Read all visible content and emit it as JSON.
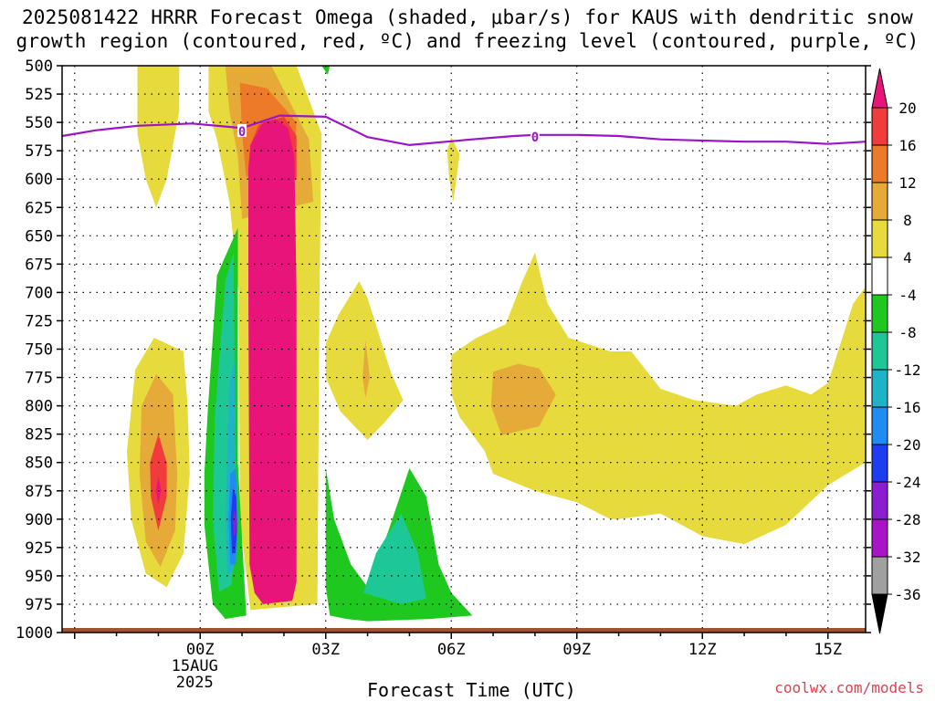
{
  "chart_data": {
    "type": "heatmap",
    "title_line1": "2025081422 HRRR Forecast Omega (shaded, μbar/s) for KAUS with dendritic snow",
    "title_line2": "growth region (contoured, red, ºC) and freezing level (contoured, purple, ºC)",
    "xlabel": "Forecast Time (UTC)",
    "ylabel": "",
    "y_axis": {
      "unit": "hPa",
      "inverted": true,
      "ylim": [
        1000,
        500
      ],
      "ticks": [
        500,
        525,
        550,
        575,
        600,
        625,
        650,
        675,
        700,
        725,
        750,
        775,
        800,
        825,
        850,
        875,
        900,
        925,
        950,
        975,
        1000
      ]
    },
    "x_axis": {
      "xlim_hours": [
        -3.3,
        15.9
      ],
      "ticks": [
        {
          "hour": 0,
          "label": "00Z",
          "sublabels": [
            "15AUG",
            "2025"
          ]
        },
        {
          "hour": 3,
          "label": "03Z"
        },
        {
          "hour": 6,
          "label": "06Z"
        },
        {
          "hour": 9,
          "label": "09Z"
        },
        {
          "hour": 12,
          "label": "12Z"
        },
        {
          "hour": 15,
          "label": "15Z"
        }
      ]
    },
    "grid": true,
    "colorbar": {
      "labels": [
        "20",
        "16",
        "12",
        "8",
        "4",
        "-4",
        "-8",
        "-12",
        "-16",
        "-20",
        "-24",
        "-28",
        "-32",
        "-36"
      ],
      "bins": [
        {
          "from": 20,
          "to": 99,
          "color": "#e8147a",
          "arrow": true
        },
        {
          "from": 16,
          "to": 20,
          "color": "#f03c3c"
        },
        {
          "from": 12,
          "to": 16,
          "color": "#ec7a28"
        },
        {
          "from": 8,
          "to": 12,
          "color": "#e5aa38"
        },
        {
          "from": 4,
          "to": 8,
          "color": "#e6da3c"
        },
        {
          "from": -4,
          "to": 4,
          "color": "#ffffff"
        },
        {
          "from": -8,
          "to": -4,
          "color": "#1ec81e"
        },
        {
          "from": -12,
          "to": -8,
          "color": "#1ec896"
        },
        {
          "from": -16,
          "to": -12,
          "color": "#1eb4c8"
        },
        {
          "from": -20,
          "to": -16,
          "color": "#1e8cf0"
        },
        {
          "from": -24,
          "to": -20,
          "color": "#1e3cf0"
        },
        {
          "from": -28,
          "to": -24,
          "color": "#8c1ed2"
        },
        {
          "from": -32,
          "to": -28,
          "color": "#aa14c8"
        },
        {
          "from": -36,
          "to": -32,
          "color": "#a0a0a0"
        },
        {
          "from": -99,
          "to": -36,
          "color": "#000000",
          "arrow": true
        }
      ]
    },
    "freezing_level": {
      "label": "0",
      "color": "#9b14c8",
      "points": [
        [
          -3.3,
          562
        ],
        [
          -2.5,
          557
        ],
        [
          -1.5,
          553
        ],
        [
          -0.2,
          551
        ],
        [
          1.0,
          555
        ],
        [
          1.9,
          544
        ],
        [
          3.0,
          545
        ],
        [
          4.0,
          563
        ],
        [
          5.0,
          570
        ],
        [
          6.5,
          565
        ],
        [
          7.5,
          562
        ],
        [
          8.0,
          561
        ],
        [
          9.0,
          561
        ],
        [
          10.0,
          562
        ],
        [
          11.0,
          565
        ],
        [
          12.0,
          566
        ],
        [
          13.0,
          567
        ],
        [
          14.0,
          567
        ],
        [
          15.0,
          569
        ],
        [
          15.9,
          567
        ]
      ],
      "label_points": [
        [
          1.0,
          558
        ],
        [
          8.0,
          563
        ]
      ]
    },
    "ground": {
      "color": "#a0522d",
      "pressure": 996
    },
    "regions": [
      {
        "color": "#e6da3c",
        "points": [
          [
            -1.5,
            500
          ],
          [
            -0.5,
            500
          ],
          [
            -0.5,
            540
          ],
          [
            -0.8,
            600
          ],
          [
            -1.05,
            625
          ],
          [
            -1.3,
            600
          ],
          [
            -1.5,
            560
          ]
        ]
      },
      {
        "color": "#e6da3c",
        "points": [
          [
            -1.1,
            740
          ],
          [
            -0.4,
            752
          ],
          [
            -0.3,
            800
          ],
          [
            -0.25,
            860
          ],
          [
            -0.4,
            930
          ],
          [
            -0.8,
            960
          ],
          [
            -1.3,
            948
          ],
          [
            -1.65,
            900
          ],
          [
            -1.75,
            840
          ],
          [
            -1.55,
            768
          ]
        ]
      },
      {
        "color": "#e5aa38",
        "points": [
          [
            -1.05,
            772
          ],
          [
            -0.65,
            790
          ],
          [
            -0.55,
            860
          ],
          [
            -0.6,
            910
          ],
          [
            -0.95,
            942
          ],
          [
            -1.3,
            920
          ],
          [
            -1.45,
            860
          ],
          [
            -1.4,
            800
          ]
        ]
      },
      {
        "color": "#f03c3c",
        "points": [
          [
            -1.0,
            825
          ],
          [
            -0.8,
            850
          ],
          [
            -0.8,
            880
          ],
          [
            -1.0,
            910
          ],
          [
            -1.18,
            880
          ],
          [
            -1.2,
            850
          ]
        ]
      },
      {
        "color": "#e8147a",
        "points": [
          [
            -1.0,
            862
          ],
          [
            -0.93,
            875
          ],
          [
            -1.0,
            886
          ],
          [
            -1.06,
            875
          ]
        ]
      },
      {
        "color": "#e6da3c",
        "points": [
          [
            0.2,
            500
          ],
          [
            2.3,
            500
          ],
          [
            2.9,
            560
          ],
          [
            2.85,
            700
          ],
          [
            2.8,
            975
          ],
          [
            1.2,
            980
          ],
          [
            0.95,
            900
          ],
          [
            0.92,
            700
          ],
          [
            0.7,
            620
          ],
          [
            0.4,
            565
          ],
          [
            0.2,
            540
          ]
        ]
      },
      {
        "color": "#e5aa38",
        "points": [
          [
            0.6,
            500
          ],
          [
            1.7,
            500
          ],
          [
            2.6,
            565
          ],
          [
            2.7,
            620
          ],
          [
            1.0,
            635
          ],
          [
            0.9,
            580
          ],
          [
            0.7,
            540
          ]
        ]
      },
      {
        "color": "#ec7a28",
        "points": [
          [
            0.95,
            515
          ],
          [
            1.6,
            520
          ],
          [
            2.3,
            550
          ],
          [
            2.25,
            590
          ],
          [
            1.1,
            598
          ],
          [
            1.0,
            560
          ]
        ]
      },
      {
        "color": "#f03c3c",
        "points": [
          [
            1.4,
            552
          ],
          [
            2.0,
            545
          ],
          [
            2.3,
            562
          ],
          [
            2.3,
            600
          ],
          [
            1.2,
            600
          ],
          [
            1.2,
            570
          ]
        ]
      },
      {
        "color": "#e8147a",
        "points": [
          [
            1.2,
            570
          ],
          [
            1.5,
            550
          ],
          [
            1.8,
            547
          ],
          [
            2.1,
            555
          ],
          [
            2.25,
            580
          ],
          [
            2.3,
            700
          ],
          [
            2.3,
            955
          ],
          [
            2.2,
            972
          ],
          [
            1.5,
            975
          ],
          [
            1.3,
            965
          ],
          [
            1.18,
            940
          ],
          [
            1.15,
            700
          ],
          [
            1.15,
            590
          ]
        ]
      },
      {
        "color": "#1ec81e",
        "points": [
          [
            0.3,
            975
          ],
          [
            0.1,
            905
          ],
          [
            0.1,
            860
          ],
          [
            0.18,
            805
          ],
          [
            0.4,
            685
          ],
          [
            0.9,
            643
          ],
          [
            0.9,
            850
          ],
          [
            1.1,
            985
          ],
          [
            0.6,
            988
          ]
        ]
      },
      {
        "color": "#1ec896",
        "points": [
          [
            0.45,
            964
          ],
          [
            0.3,
            900
          ],
          [
            0.35,
            810
          ],
          [
            0.6,
            690
          ],
          [
            0.8,
            665
          ],
          [
            0.85,
            900
          ],
          [
            0.75,
            958
          ]
        ]
      },
      {
        "color": "#1eb4c8",
        "points": [
          [
            0.65,
            950
          ],
          [
            0.6,
            900
          ],
          [
            0.7,
            780
          ],
          [
            0.82,
            760
          ],
          [
            0.85,
            900
          ],
          [
            0.8,
            945
          ]
        ]
      },
      {
        "color": "#1e8cf0",
        "points": [
          [
            0.72,
            940
          ],
          [
            0.68,
            900
          ],
          [
            0.72,
            860
          ],
          [
            0.85,
            855
          ],
          [
            0.9,
            900
          ],
          [
            0.85,
            940
          ]
        ]
      },
      {
        "color": "#1e3cf0",
        "points": [
          [
            0.76,
            930
          ],
          [
            0.73,
            900
          ],
          [
            0.78,
            873
          ],
          [
            0.86,
            880
          ],
          [
            0.88,
            910
          ],
          [
            0.84,
            930
          ]
        ]
      },
      {
        "color": "#8c1ed2",
        "points": [
          [
            0.8,
            915
          ],
          [
            0.78,
            900
          ],
          [
            0.82,
            892
          ],
          [
            0.86,
            900
          ],
          [
            0.85,
            913
          ]
        ]
      },
      {
        "color": "#1ec81e",
        "points": [
          [
            3.0,
            855
          ],
          [
            3.2,
            900
          ],
          [
            3.6,
            940
          ],
          [
            4.0,
            960
          ],
          [
            4.5,
            910
          ],
          [
            5.0,
            855
          ],
          [
            5.4,
            880
          ],
          [
            5.7,
            940
          ],
          [
            6.0,
            965
          ],
          [
            6.5,
            985
          ],
          [
            5.5,
            988
          ],
          [
            4.0,
            990
          ],
          [
            3.5,
            988
          ],
          [
            3.1,
            985
          ],
          [
            3.0,
            960
          ]
        ]
      },
      {
        "color": "#1ec896",
        "points": [
          [
            3.9,
            965
          ],
          [
            4.2,
            930
          ],
          [
            4.8,
            895
          ],
          [
            5.2,
            930
          ],
          [
            5.4,
            970
          ],
          [
            4.8,
            975
          ]
        ]
      },
      {
        "color": "#1ec81e",
        "points": [
          [
            2.9,
            500
          ],
          [
            3.1,
            500
          ],
          [
            3.05,
            508
          ]
        ]
      },
      {
        "color": "#e6da3c",
        "points": [
          [
            3.0,
            745
          ],
          [
            3.3,
            720
          ],
          [
            3.8,
            690
          ],
          [
            4.0,
            705
          ],
          [
            4.55,
            770
          ],
          [
            4.85,
            795
          ],
          [
            4.4,
            815
          ],
          [
            4.0,
            830
          ],
          [
            3.35,
            805
          ],
          [
            3.0,
            775
          ]
        ]
      },
      {
        "color": "#e5aa38",
        "points": [
          [
            3.95,
            742
          ],
          [
            4.05,
            775
          ],
          [
            3.95,
            793
          ],
          [
            3.88,
            775
          ]
        ]
      },
      {
        "color": "#e6da3c",
        "points": [
          [
            5.9,
            575
          ],
          [
            6.0,
            563
          ],
          [
            6.2,
            578
          ],
          [
            6.05,
            620
          ],
          [
            5.95,
            600
          ]
        ]
      },
      {
        "color": "#e6da3c",
        "points": [
          [
            6.0,
            755
          ],
          [
            6.6,
            740
          ],
          [
            7.3,
            728
          ],
          [
            7.7,
            690
          ],
          [
            8.0,
            665
          ],
          [
            8.3,
            710
          ],
          [
            8.8,
            740
          ],
          [
            9.8,
            752
          ],
          [
            10.3,
            752
          ],
          [
            11.0,
            785
          ],
          [
            11.8,
            795
          ],
          [
            12.8,
            800
          ],
          [
            13.3,
            790
          ],
          [
            14.0,
            782
          ],
          [
            14.6,
            790
          ],
          [
            15.0,
            780
          ],
          [
            15.6,
            710
          ],
          [
            15.9,
            695
          ],
          [
            15.9,
            850
          ],
          [
            15.0,
            870
          ],
          [
            14.0,
            905
          ],
          [
            13.0,
            922
          ],
          [
            12.0,
            915
          ],
          [
            11.0,
            895
          ],
          [
            10.0,
            900
          ],
          [
            9.8,
            900
          ],
          [
            9.0,
            885
          ],
          [
            8.0,
            875
          ],
          [
            7.0,
            860
          ],
          [
            6.8,
            840
          ],
          [
            6.2,
            810
          ],
          [
            6.0,
            790
          ]
        ]
      },
      {
        "color": "#e5aa38",
        "points": [
          [
            7.0,
            770
          ],
          [
            7.6,
            763
          ],
          [
            8.1,
            767
          ],
          [
            8.5,
            790
          ],
          [
            8.1,
            818
          ],
          [
            7.2,
            826
          ],
          [
            6.95,
            800
          ]
        ]
      }
    ]
  },
  "watermark": "coolwx.com/models"
}
